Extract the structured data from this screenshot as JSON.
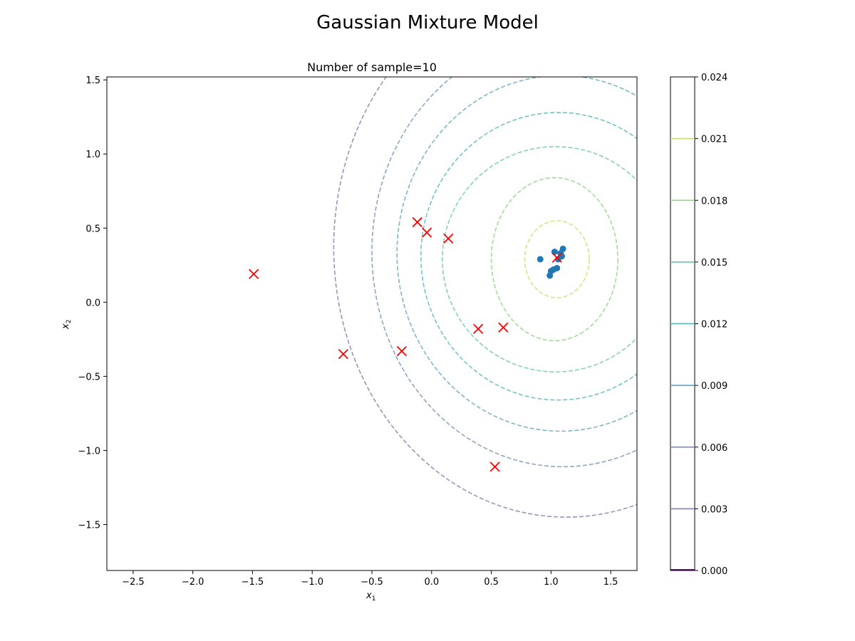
{
  "figure": {
    "suptitle": "Gaussian Mixture Model"
  },
  "chart_data": {
    "type": "scatter",
    "title": "Number of sample=10",
    "xlabel": "x",
    "xlabel_sub": "1",
    "ylabel": "x",
    "ylabel_sub": "2",
    "xlim": [
      -2.72,
      1.72
    ],
    "ylim": [
      -1.81,
      1.52
    ],
    "xticks": [
      -2.5,
      -2.0,
      -1.5,
      -1.0,
      -0.5,
      0.0,
      0.5,
      1.0,
      1.5
    ],
    "xtick_labels": [
      "−2.5",
      "−2.0",
      "−1.5",
      "−1.0",
      "−0.5",
      "0.0",
      "0.5",
      "1.0",
      "1.5"
    ],
    "yticks": [
      -1.5,
      -1.0,
      -0.5,
      0.0,
      0.5,
      1.0,
      1.5
    ],
    "ytick_labels": [
      "−1.5",
      "−1.0",
      "−0.5",
      "0.0",
      "0.5",
      "1.0",
      "1.5"
    ],
    "grid": false,
    "series": [
      {
        "marker": "circle",
        "color": "#1f77b4",
        "points": [
          [
            0.91,
            0.29
          ],
          [
            1.03,
            0.34
          ],
          [
            1.08,
            0.33
          ],
          [
            1.1,
            0.36
          ],
          [
            1.09,
            0.31
          ],
          [
            1.06,
            0.29
          ],
          [
            1.0,
            0.21
          ],
          [
            1.02,
            0.22
          ],
          [
            1.05,
            0.23
          ],
          [
            0.99,
            0.18
          ]
        ]
      },
      {
        "marker": "x",
        "color": "#ff0000",
        "points": [
          [
            -1.49,
            0.19
          ],
          [
            -0.74,
            -0.35
          ],
          [
            -0.25,
            -0.33
          ],
          [
            -0.12,
            0.54
          ],
          [
            -0.04,
            0.47
          ],
          [
            0.14,
            0.43
          ],
          [
            0.39,
            -0.18
          ],
          [
            0.6,
            -0.17
          ],
          [
            1.05,
            0.3
          ],
          [
            0.53,
            -1.11
          ]
        ]
      }
    ],
    "contours": {
      "style": "dashed",
      "levels": [
        {
          "level": 0.003,
          "color": "#9b94bd",
          "cx": 1.13,
          "cy": 0.37,
          "rx": 1.95,
          "ry": 1.82
        },
        {
          "level": 0.006,
          "color": "#8fa5c4",
          "cx": 1.1,
          "cy": 0.34,
          "rx": 1.6,
          "ry": 1.45
        },
        {
          "level": 0.009,
          "color": "#80b6c6",
          "cx": 1.08,
          "cy": 0.33,
          "rx": 1.37,
          "ry": 1.2
        },
        {
          "level": 0.012,
          "color": "#75c4c4",
          "cx": 1.06,
          "cy": 0.31,
          "rx": 1.15,
          "ry": 0.97
        },
        {
          "level": 0.015,
          "color": "#86d1b8",
          "cx": 1.04,
          "cy": 0.29,
          "rx": 0.95,
          "ry": 0.76
        },
        {
          "level": 0.018,
          "color": "#a3dc98",
          "cx": 1.03,
          "cy": 0.29,
          "rx": 0.53,
          "ry": 0.55
        },
        {
          "level": 0.021,
          "color": "#d5e486",
          "cx": 1.05,
          "cy": 0.29,
          "rx": 0.27,
          "ry": 0.26
        }
      ]
    },
    "colorbar": {
      "range": [
        0.0,
        0.024
      ],
      "ticks": [
        0.0,
        0.003,
        0.006,
        0.009,
        0.012,
        0.015,
        0.018,
        0.021,
        0.024
      ],
      "tick_labels": [
        "0.000",
        "0.003",
        "0.006",
        "0.009",
        "0.012",
        "0.015",
        "0.018",
        "0.021",
        "0.024"
      ],
      "line_colors": [
        "#440154",
        "#8d86b5",
        "#7f97bd",
        "#6eabbd",
        "#60bbb7",
        "#6fcca5",
        "#96d98a",
        "#c7e37c",
        "#ffffff"
      ]
    }
  }
}
